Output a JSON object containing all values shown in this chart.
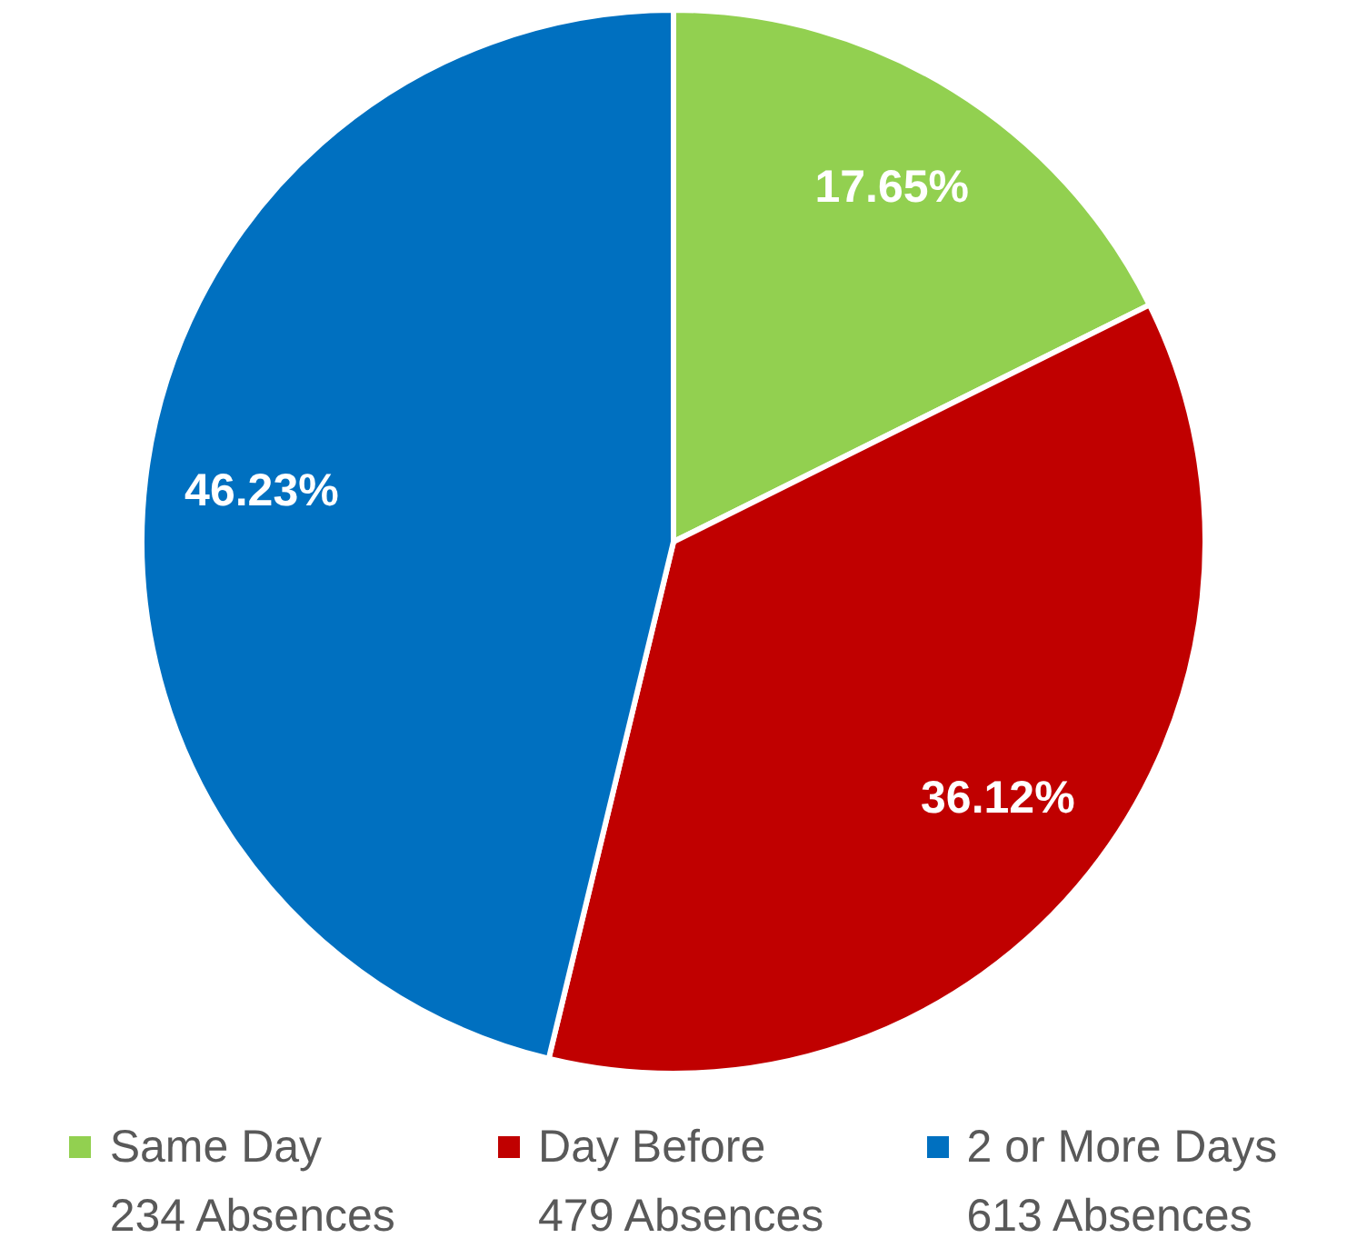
{
  "chart_data": {
    "type": "pie",
    "categories": [
      "Same Day\n234 Absences",
      "Day Before\n479 Absences",
      "2 or More Days\n613 Absences"
    ],
    "values": [
      17.65,
      36.12,
      46.23
    ],
    "value_labels": [
      "17.65%",
      "36.12%",
      "46.23%"
    ],
    "colors": [
      "#92d050",
      "#c00000",
      "#0070c0"
    ],
    "legend": "bottom"
  }
}
